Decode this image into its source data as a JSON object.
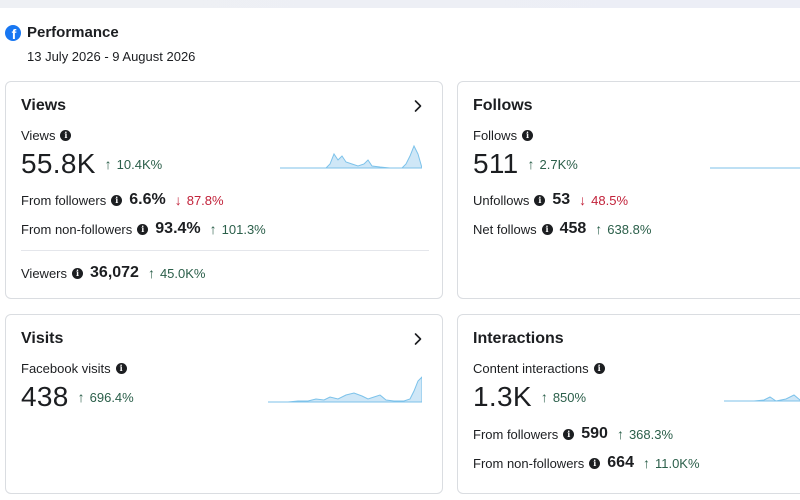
{
  "header": {
    "title": "Performance",
    "date_range": "13 July 2026 - 9 August 2026"
  },
  "colors": {
    "up": "#2b5f4a",
    "down": "#c2223a",
    "spark_fill": "#cfe7f7",
    "spark_line": "#7cc2ea",
    "brand": "#1877f2"
  },
  "views": {
    "title": "Views",
    "metric_label": "Views",
    "metric_value": "55.8K",
    "metric_delta": "10.4K%",
    "from_followers_label": "From followers",
    "from_followers_value": "6.6%",
    "from_followers_delta": "87.8%",
    "from_non_followers_label": "From non-followers",
    "from_non_followers_value": "93.4%",
    "from_non_followers_delta": "101.3%",
    "viewers_label": "Viewers",
    "viewers_value": "36,072",
    "viewers_delta": "45.0K%"
  },
  "follows": {
    "title": "Follows",
    "metric_label": "Follows",
    "metric_value": "511",
    "metric_delta": "2.7K%",
    "unfollows_label": "Unfollows",
    "unfollows_value": "53",
    "unfollows_delta": "48.5%",
    "net_label": "Net follows",
    "net_value": "458",
    "net_delta": "638.8%"
  },
  "visits": {
    "title": "Visits",
    "metric_label": "Facebook visits",
    "metric_value": "438",
    "metric_delta": "696.4%"
  },
  "interactions": {
    "title": "Interactions",
    "metric_label": "Content interactions",
    "metric_value": "1.3K",
    "metric_delta": "850%",
    "from_followers_label": "From followers",
    "from_followers_value": "590",
    "from_followers_delta": "368.3%",
    "from_non_followers_label": "From non-followers",
    "from_non_followers_value": "664",
    "from_non_followers_delta": "11.0K%"
  },
  "icons": {
    "info": "info-icon",
    "chevron": "chevron-right-icon",
    "up": "arrow-up-icon",
    "down": "arrow-down-icon"
  }
}
